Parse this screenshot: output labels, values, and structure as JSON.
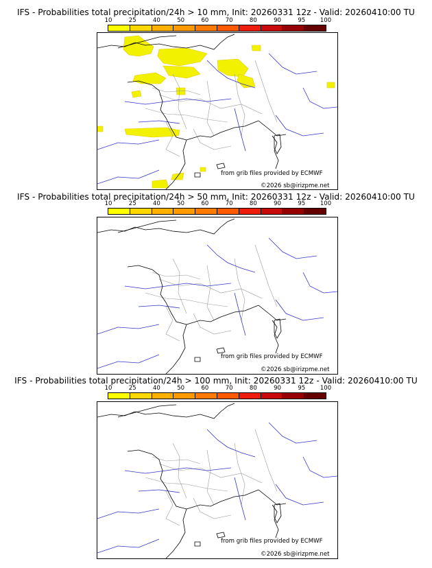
{
  "colorbar": {
    "labels": [
      "10",
      "25",
      "40",
      "50",
      "60",
      "70",
      "80",
      "90",
      "95",
      "100"
    ],
    "colors": [
      "#ffff00",
      "#ffd700",
      "#ffb000",
      "#ff9a00",
      "#ff7a00",
      "#ff5a00",
      "#ee1c0a",
      "#c80a0a",
      "#960000",
      "#640000"
    ]
  },
  "panels": [
    {
      "title": "IFS - Probabilities total precipitation/24h > 10 mm, Init: 20260331 12z - Valid: 20260410:00 TU",
      "provider": "from grib files provided by ECMWF",
      "copyright": "©2026 sb@irizpme.net",
      "has_precip": true
    },
    {
      "title": "IFS - Probabilities total precipitation/24h > 50 mm, Init: 20260331 12z - Valid: 20260410:00 TU",
      "provider": "from grib files provided by ECMWF",
      "copyright": "©2026 sb@irizpme.net",
      "has_precip": false
    },
    {
      "title": "IFS - Probabilities total precipitation/24h > 100 mm, Init: 20260331 12z - Valid: 20260410:00 TU",
      "provider": "from grib files provided by ECMWF",
      "copyright": "©2026 sb@irizpme.net",
      "has_precip": false
    }
  ],
  "map_colors": {
    "coast": "#000000",
    "rivers": "#3333cc",
    "borders": "#9a9a9a",
    "precip": "#f2f200",
    "precip_edge": "#e6c800"
  }
}
